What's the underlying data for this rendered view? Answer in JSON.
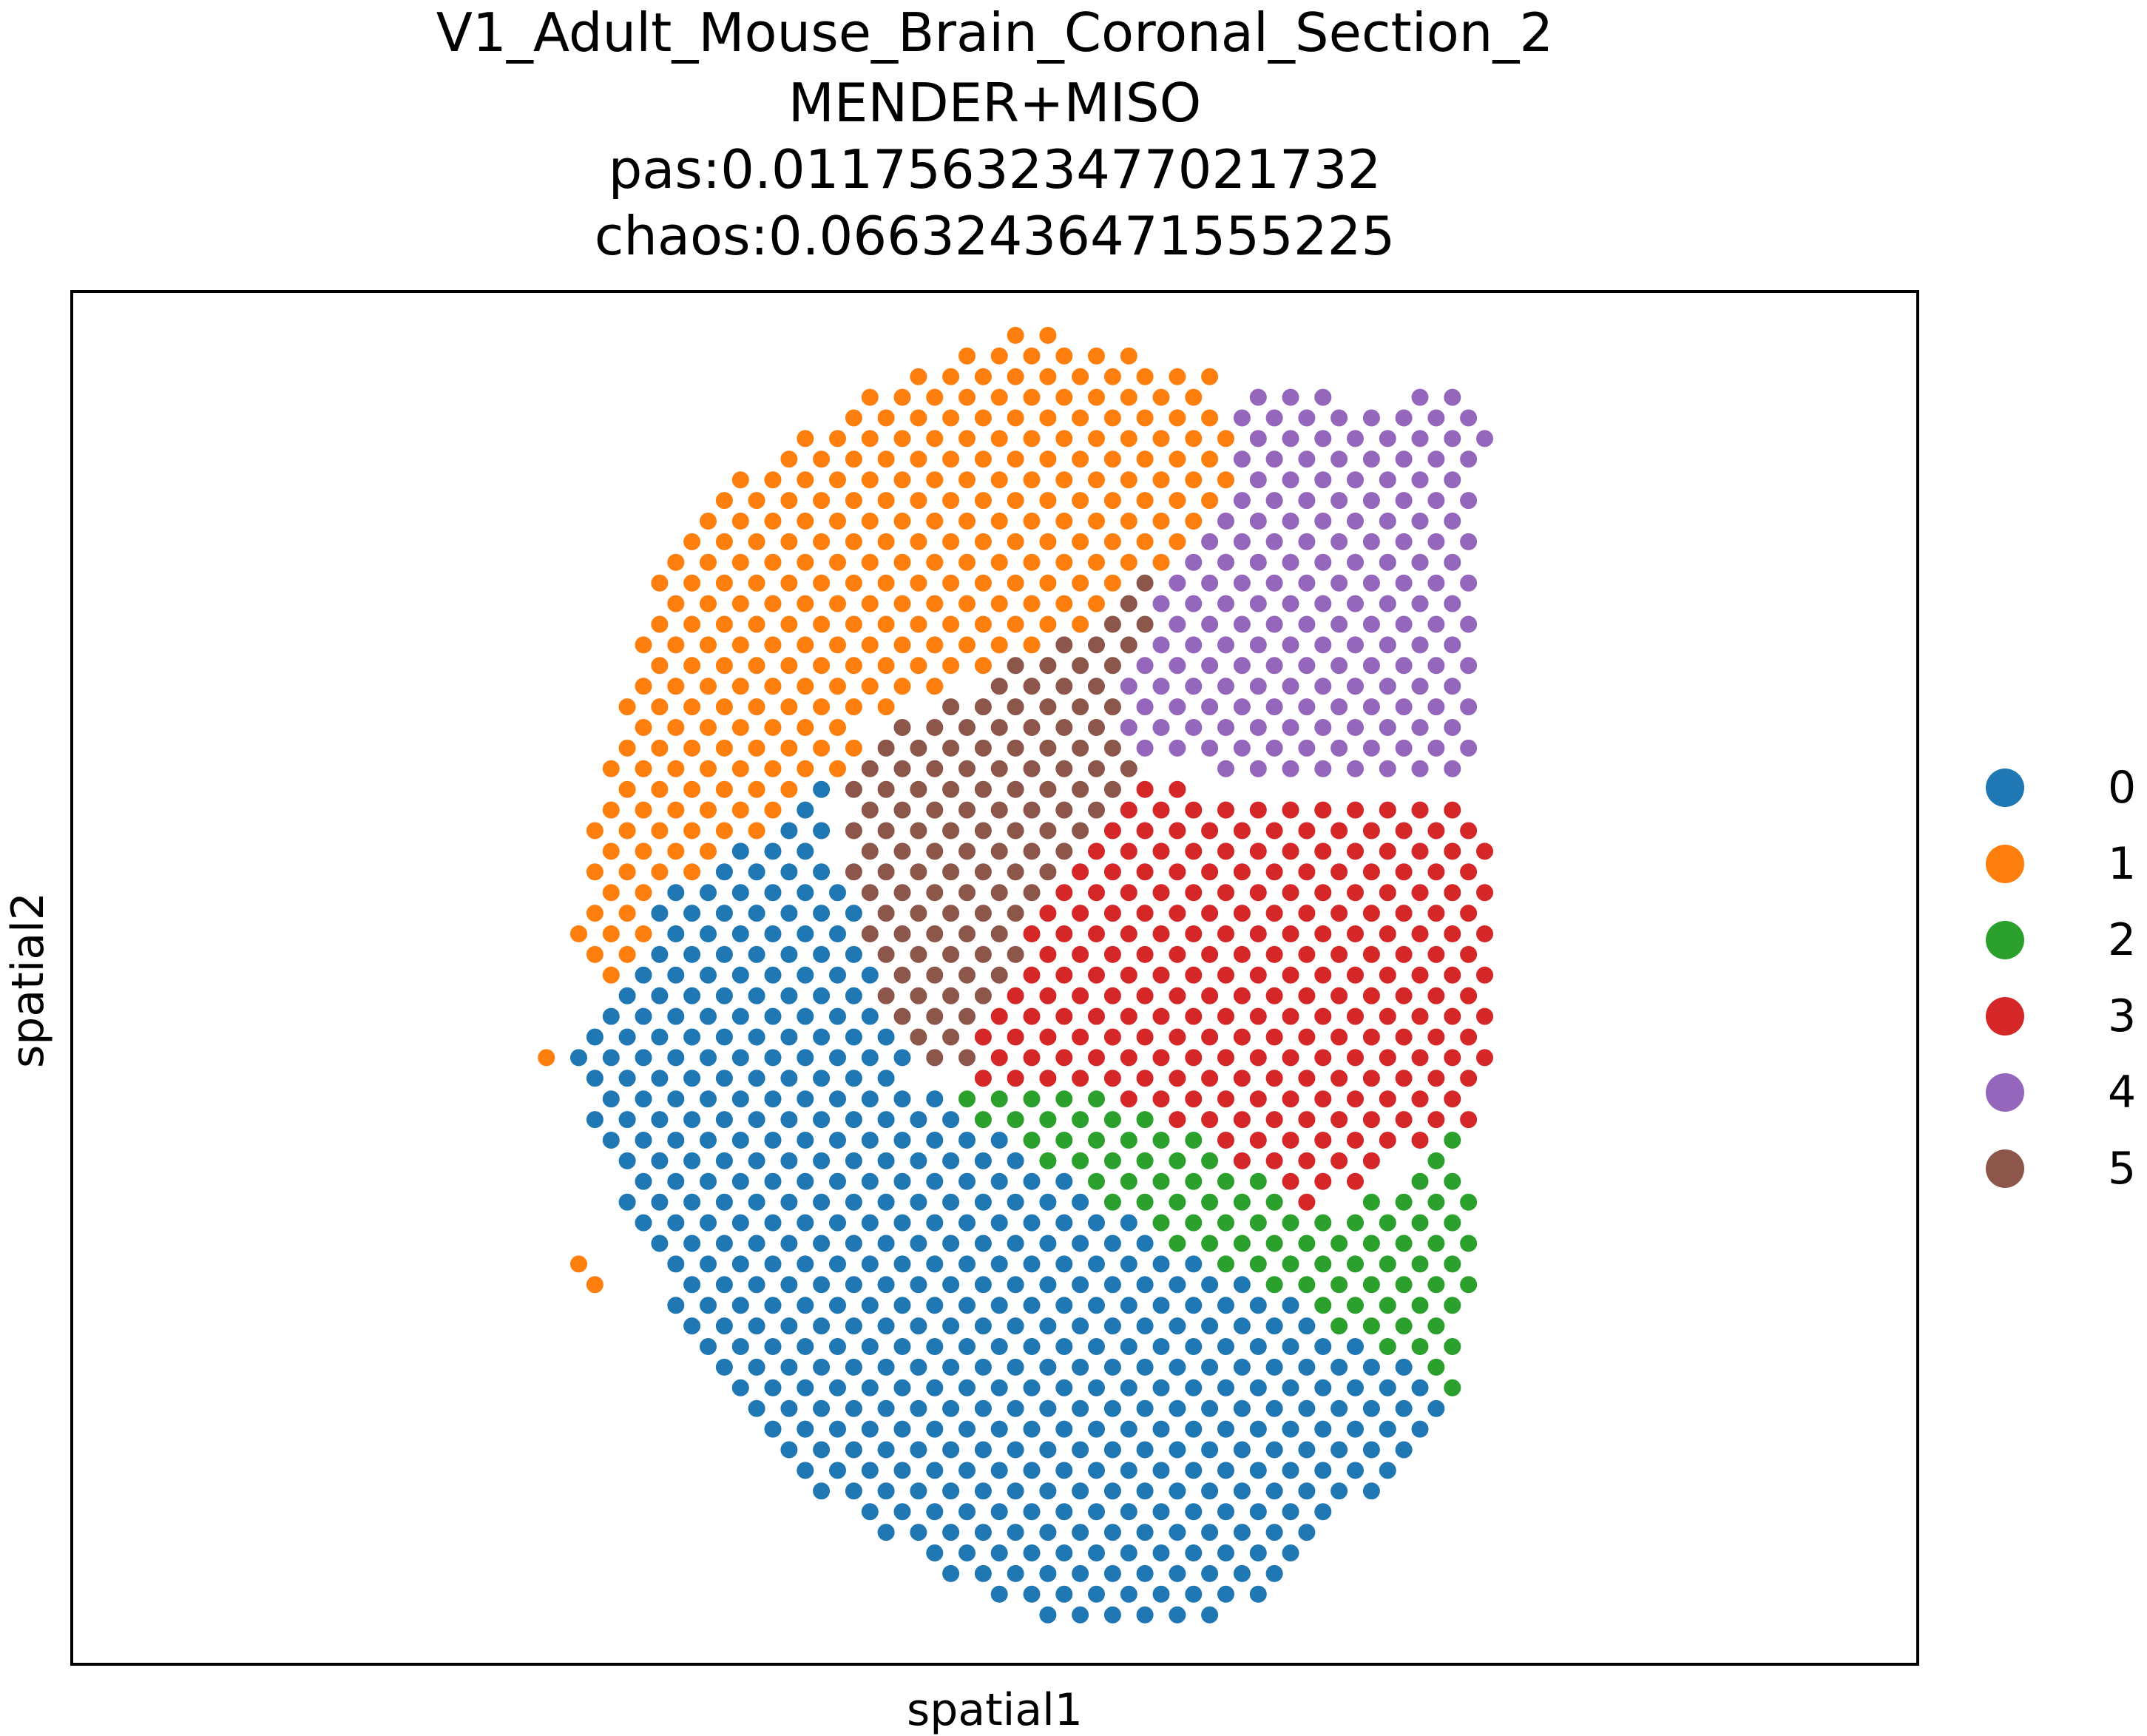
{
  "chart_data": {
    "type": "scatter",
    "title": [
      "V1_Adult_Mouse_Brain_Coronal_Section_2",
      "MENDER+MISO",
      "pas:0.011756323477021732",
      "chaos:0.06632436471555225"
    ],
    "xlabel": "spatial1",
    "ylabel": "spatial2",
    "xlim": [
      0,
      100
    ],
    "ylim": [
      0,
      100
    ],
    "grid": false,
    "legend_position": "right",
    "legend": [
      {
        "label": "0",
        "color": "#1f77b4"
      },
      {
        "label": "1",
        "color": "#ff7f0e"
      },
      {
        "label": "2",
        "color": "#2ca02c"
      },
      {
        "label": "3",
        "color": "#d62728"
      },
      {
        "label": "4",
        "color": "#9467bd"
      },
      {
        "label": "5",
        "color": "#8c564b"
      }
    ],
    "spot_grid": {
      "spacing": 1.75,
      "row_height": 1.5
    },
    "regions": [
      {
        "cluster": "0",
        "polygon": [
          [
            32.4,
            56.1
          ],
          [
            42,
            65
          ],
          [
            41,
            60
          ],
          [
            45.8,
            42.5
          ],
          [
            58,
            32
          ],
          [
            75,
            20
          ],
          [
            71.5,
            14
          ],
          [
            63,
            3.3
          ],
          [
            53.5,
            3.3
          ],
          [
            46,
            7.5
          ],
          [
            38,
            14.5
          ],
          [
            33,
            25
          ],
          [
            29,
            36
          ],
          [
            27.3,
            44
          ],
          [
            28.9,
            47.5
          ]
        ]
      },
      {
        "cluster": "1",
        "polygon": [
          [
            29,
            48
          ],
          [
            27.2,
            53
          ],
          [
            28.2,
            62
          ],
          [
            30,
            72
          ],
          [
            32,
            81
          ],
          [
            37,
            87.5
          ],
          [
            44.5,
            94
          ],
          [
            52.5,
            97.5
          ],
          [
            56,
            96
          ],
          [
            62.8,
            94
          ],
          [
            62,
            92
          ],
          [
            63.3,
            87
          ],
          [
            57,
            77
          ],
          [
            43,
            69
          ],
          [
            42,
            65
          ],
          [
            32.4,
            56.1
          ]
        ]
      },
      {
        "cluster": "1",
        "polygon": [
          [
            25.3,
            44.3
          ],
          [
            26.5,
            44.3
          ],
          [
            26.5,
            42.6
          ],
          [
            25.3,
            42.6
          ]
        ]
      },
      {
        "cluster": "1",
        "polygon": [
          [
            26.8,
            29.9
          ],
          [
            28.6,
            29.9
          ],
          [
            28.6,
            26.8
          ],
          [
            26.8,
            26.8
          ]
        ]
      },
      {
        "cluster": "1",
        "polygon": [
          [
            43.7,
            8.9
          ],
          [
            44.9,
            8.9
          ],
          [
            44.9,
            7.5
          ],
          [
            43.7,
            7.5
          ]
        ]
      },
      {
        "cluster": "2",
        "polygon": [
          [
            42.8,
            32.8
          ],
          [
            45.5,
            42.5
          ],
          [
            58,
            41
          ],
          [
            68.3,
            32
          ],
          [
            75,
            39
          ],
          [
            76,
            33
          ],
          [
            75,
            18.5
          ],
          [
            68,
            20
          ],
          [
            54.5,
            20
          ],
          [
            50,
            25
          ],
          [
            43,
            31
          ]
        ]
      },
      {
        "cluster": "3",
        "polygon": [
          [
            48,
            42
          ],
          [
            53,
            56
          ],
          [
            58,
            64
          ],
          [
            65.3,
            63
          ],
          [
            73.5,
            63
          ],
          [
            76.8,
            61
          ],
          [
            76.8,
            42.8
          ],
          [
            75.3,
            38.5
          ],
          [
            72.5,
            38
          ],
          [
            68.8,
            34
          ],
          [
            61,
            30
          ],
          [
            58,
            32.5
          ],
          [
            51,
            42
          ]
        ]
      },
      {
        "cluster": "4",
        "polygon": [
          [
            56.4,
            68
          ],
          [
            59,
            79
          ],
          [
            62,
            88.5
          ],
          [
            62.5,
            92
          ],
          [
            66,
            92.5
          ],
          [
            71.1,
            92
          ],
          [
            75.7,
            93.5
          ],
          [
            76.7,
            91
          ],
          [
            76.3,
            83
          ],
          [
            76.3,
            64.5
          ],
          [
            67,
            65
          ],
          [
            62,
            65
          ],
          [
            58,
            66
          ]
        ]
      },
      {
        "cluster": "5",
        "polygon": [
          [
            40.3,
            65.8
          ],
          [
            47.3,
            69.9
          ],
          [
            52.9,
            74.6
          ],
          [
            57.3,
            78.4
          ],
          [
            62.6,
            83.2
          ],
          [
            61.8,
            78
          ],
          [
            59,
            70
          ],
          [
            57.5,
            65.5
          ],
          [
            59,
            64
          ],
          [
            54,
            57
          ],
          [
            50.8,
            48
          ],
          [
            49,
            43
          ],
          [
            45,
            44
          ],
          [
            43,
            42
          ],
          [
            42.3,
            38
          ],
          [
            42.2,
            36
          ],
          [
            41.8,
            45
          ],
          [
            41.9,
            55
          ],
          [
            41.6,
            63
          ]
        ]
      }
    ]
  }
}
